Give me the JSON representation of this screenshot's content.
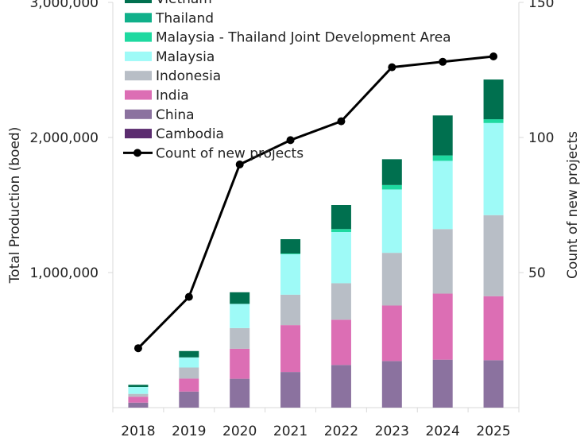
{
  "chart_data": {
    "type": "bar",
    "subtype": "stacked bar with line on secondary axis",
    "categories": [
      "2018",
      "2019",
      "2020",
      "2021",
      "2022",
      "2023",
      "2024",
      "2025"
    ],
    "ylabel": "Total Production (boed)",
    "ylabel_right": "Count of new projects",
    "ylim": [
      0,
      3000000
    ],
    "ylim_right": [
      0,
      150
    ],
    "yticks": [
      {
        "value": 1000000,
        "label": "1,000,000"
      },
      {
        "value": 2000000,
        "label": "2,000,000"
      },
      {
        "value": 3000000,
        "label": "3,000,000"
      }
    ],
    "yticks_right": [
      {
        "value": 50,
        "label": "50"
      },
      {
        "value": 100,
        "label": "100"
      },
      {
        "value": 150,
        "label": "150"
      }
    ],
    "grid": false,
    "legend_placement": "top-left",
    "series": [
      {
        "name": "Cambodia",
        "color": "#5b2c6f",
        "values": [
          0,
          0,
          0,
          0,
          0,
          0,
          0,
          0
        ]
      },
      {
        "name": "China",
        "color": "#8b729f",
        "values": [
          37000,
          119000,
          214000,
          264000,
          316000,
          345000,
          355000,
          351000
        ]
      },
      {
        "name": "India",
        "color": "#dc6eb4",
        "values": [
          44000,
          96000,
          222000,
          347000,
          335000,
          411000,
          489000,
          474000
        ]
      },
      {
        "name": "Indonesia",
        "color": "#b8bec6",
        "values": [
          21000,
          82000,
          153000,
          225000,
          270000,
          390000,
          478000,
          600000
        ]
      },
      {
        "name": "Malaysia",
        "color": "#9efaf7",
        "values": [
          51000,
          75000,
          179000,
          300000,
          379000,
          469000,
          505000,
          682000
        ]
      },
      {
        "name": "Malaysia - Thailand Joint Development Area",
        "color": "#1ed9a0",
        "values": [
          0,
          0,
          0,
          5000,
          22000,
          33000,
          40000,
          28000
        ]
      },
      {
        "name": "Thailand",
        "color": "#10b08a",
        "values": [
          0,
          0,
          0,
          0,
          0,
          0,
          0,
          0
        ]
      },
      {
        "name": "Vietnam",
        "color": "#00704f",
        "values": [
          16000,
          47000,
          86000,
          106000,
          178000,
          191000,
          296000,
          294000
        ]
      }
    ],
    "line_series": {
      "name": "Count of new projects",
      "color": "#000000",
      "axis": "right",
      "values": [
        22,
        41,
        90,
        99,
        106,
        126,
        128,
        130
      ]
    }
  }
}
